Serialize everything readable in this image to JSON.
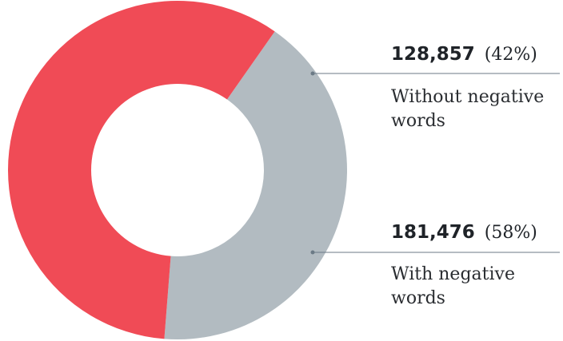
{
  "chart_data": {
    "type": "pie",
    "title": "",
    "series": [
      {
        "label": "Without negative words",
        "value": 128857,
        "value_text": "128,857",
        "percent_text": "(42%)",
        "label_lines": [
          "Without negative",
          "words"
        ],
        "color": "#b2bbc1"
      },
      {
        "label": "With negative words",
        "value": 181476,
        "value_text": "181,476",
        "percent_text": "(58%)",
        "label_lines": [
          "With negative",
          "words"
        ],
        "color": "#f04b56"
      }
    ],
    "donut": true,
    "start_angle_deg": -55,
    "legend": "none"
  },
  "colors": {
    "leader": "#6b7a86",
    "background": "#ffffff"
  }
}
